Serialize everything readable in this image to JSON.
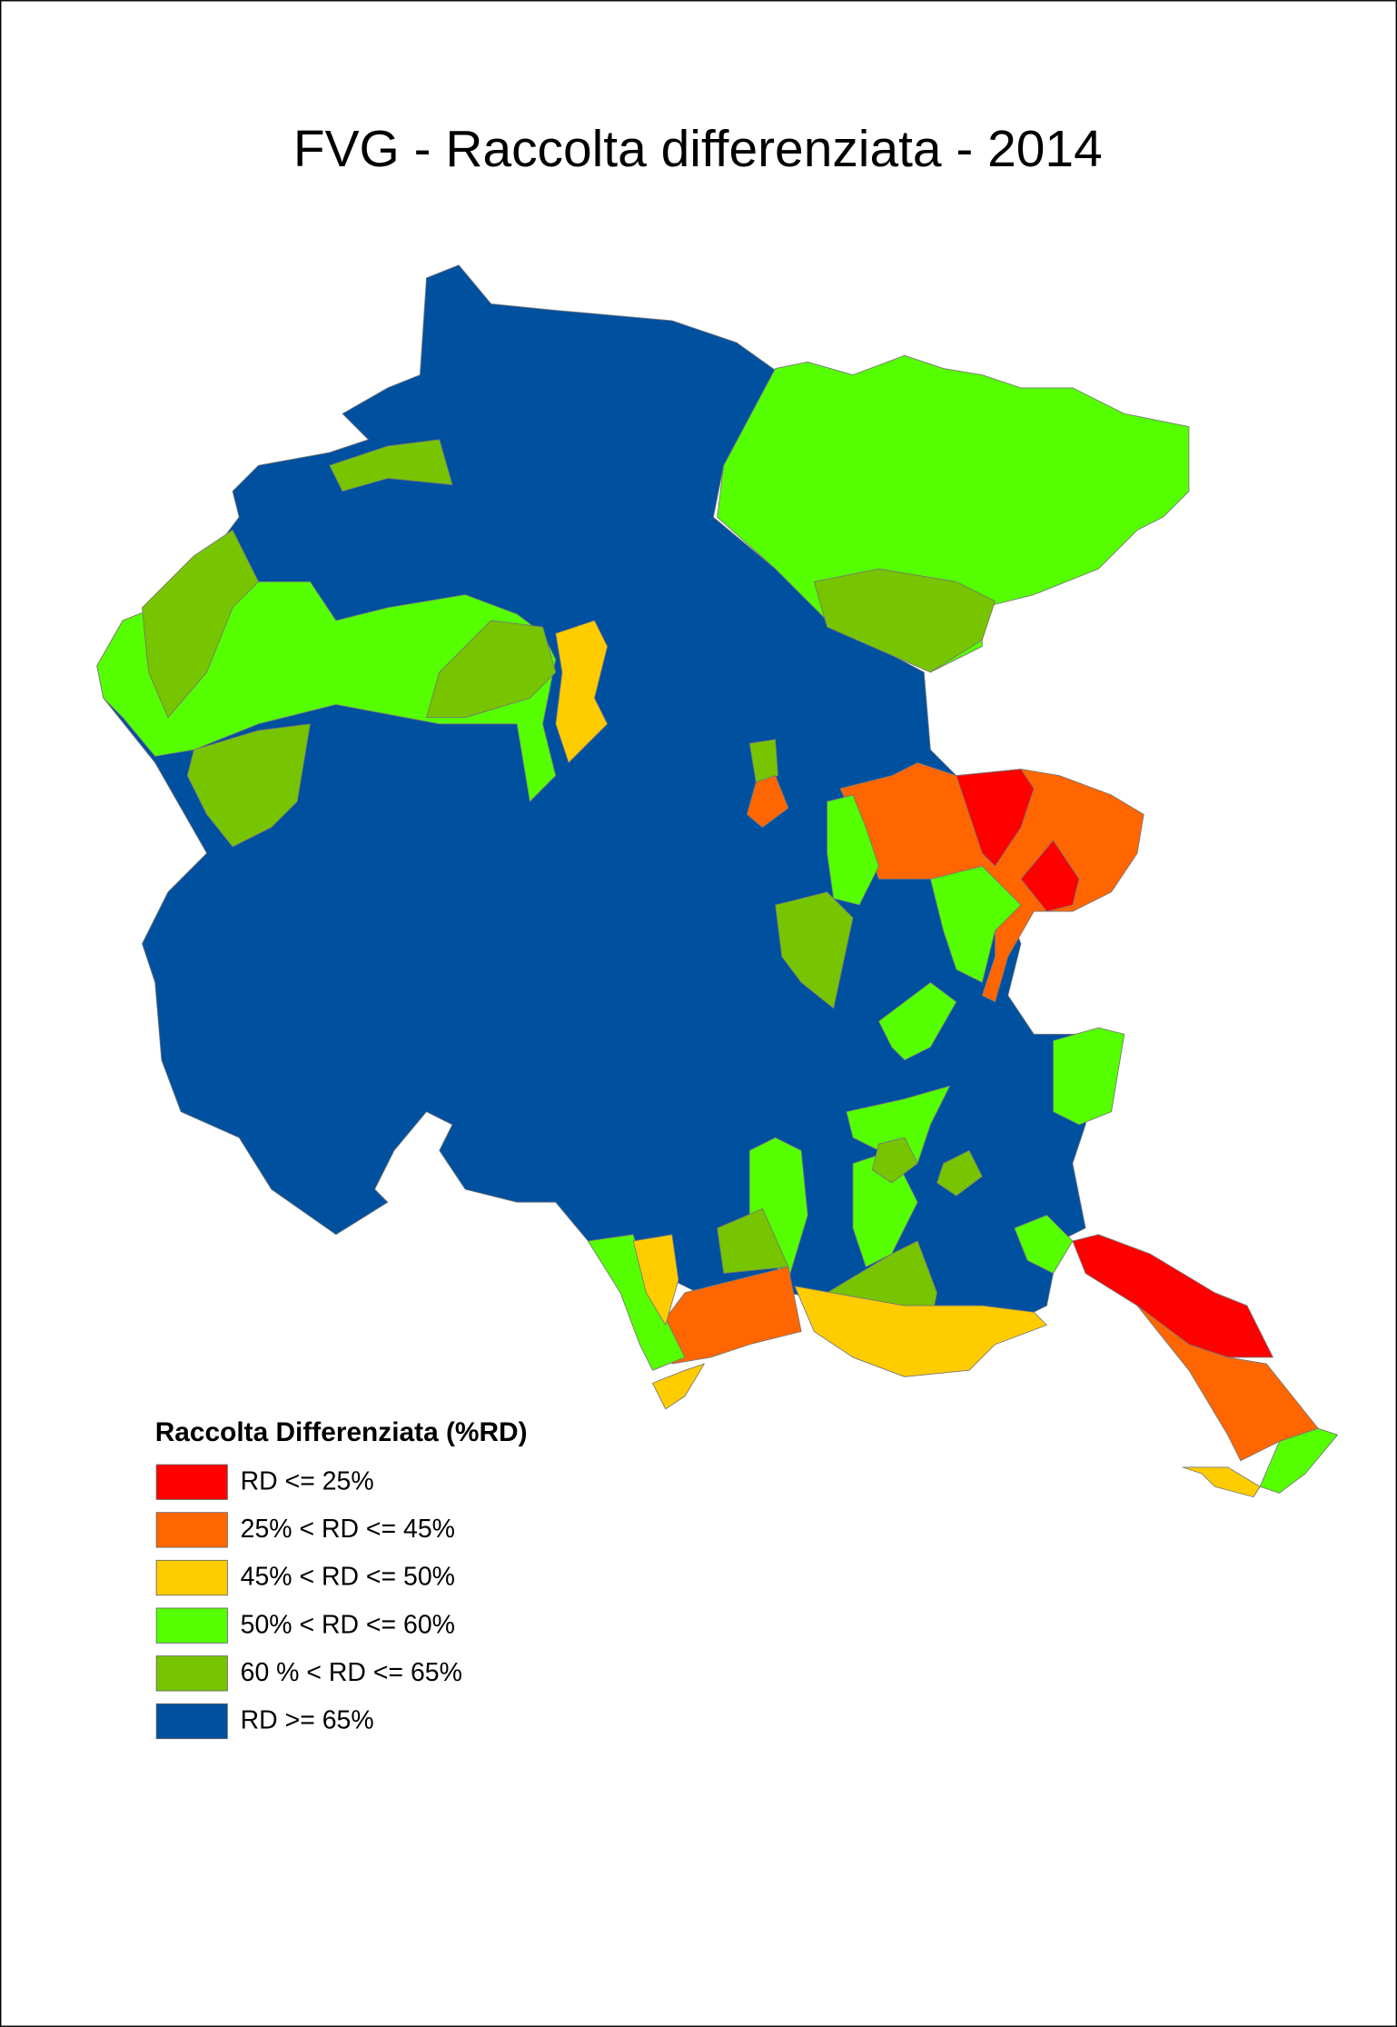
{
  "title": "FVG - Raccolta differenziata - 2014",
  "legend": {
    "title": "Raccolta Differenziata (%RD)",
    "items": [
      {
        "label": "RD <= 25%",
        "color": "#ff0000"
      },
      {
        "label": "25% < RD <= 45%",
        "color": "#ff6600"
      },
      {
        "label": "45% < RD <= 50%",
        "color": "#ffcc00"
      },
      {
        "label": "50% < RD <= 60%",
        "color": "#55ff00"
      },
      {
        "label": "60 % < RD <= 65%",
        "color": "#77c400"
      },
      {
        "label": "RD >= 65%",
        "color": "#0050a0"
      }
    ]
  }
}
